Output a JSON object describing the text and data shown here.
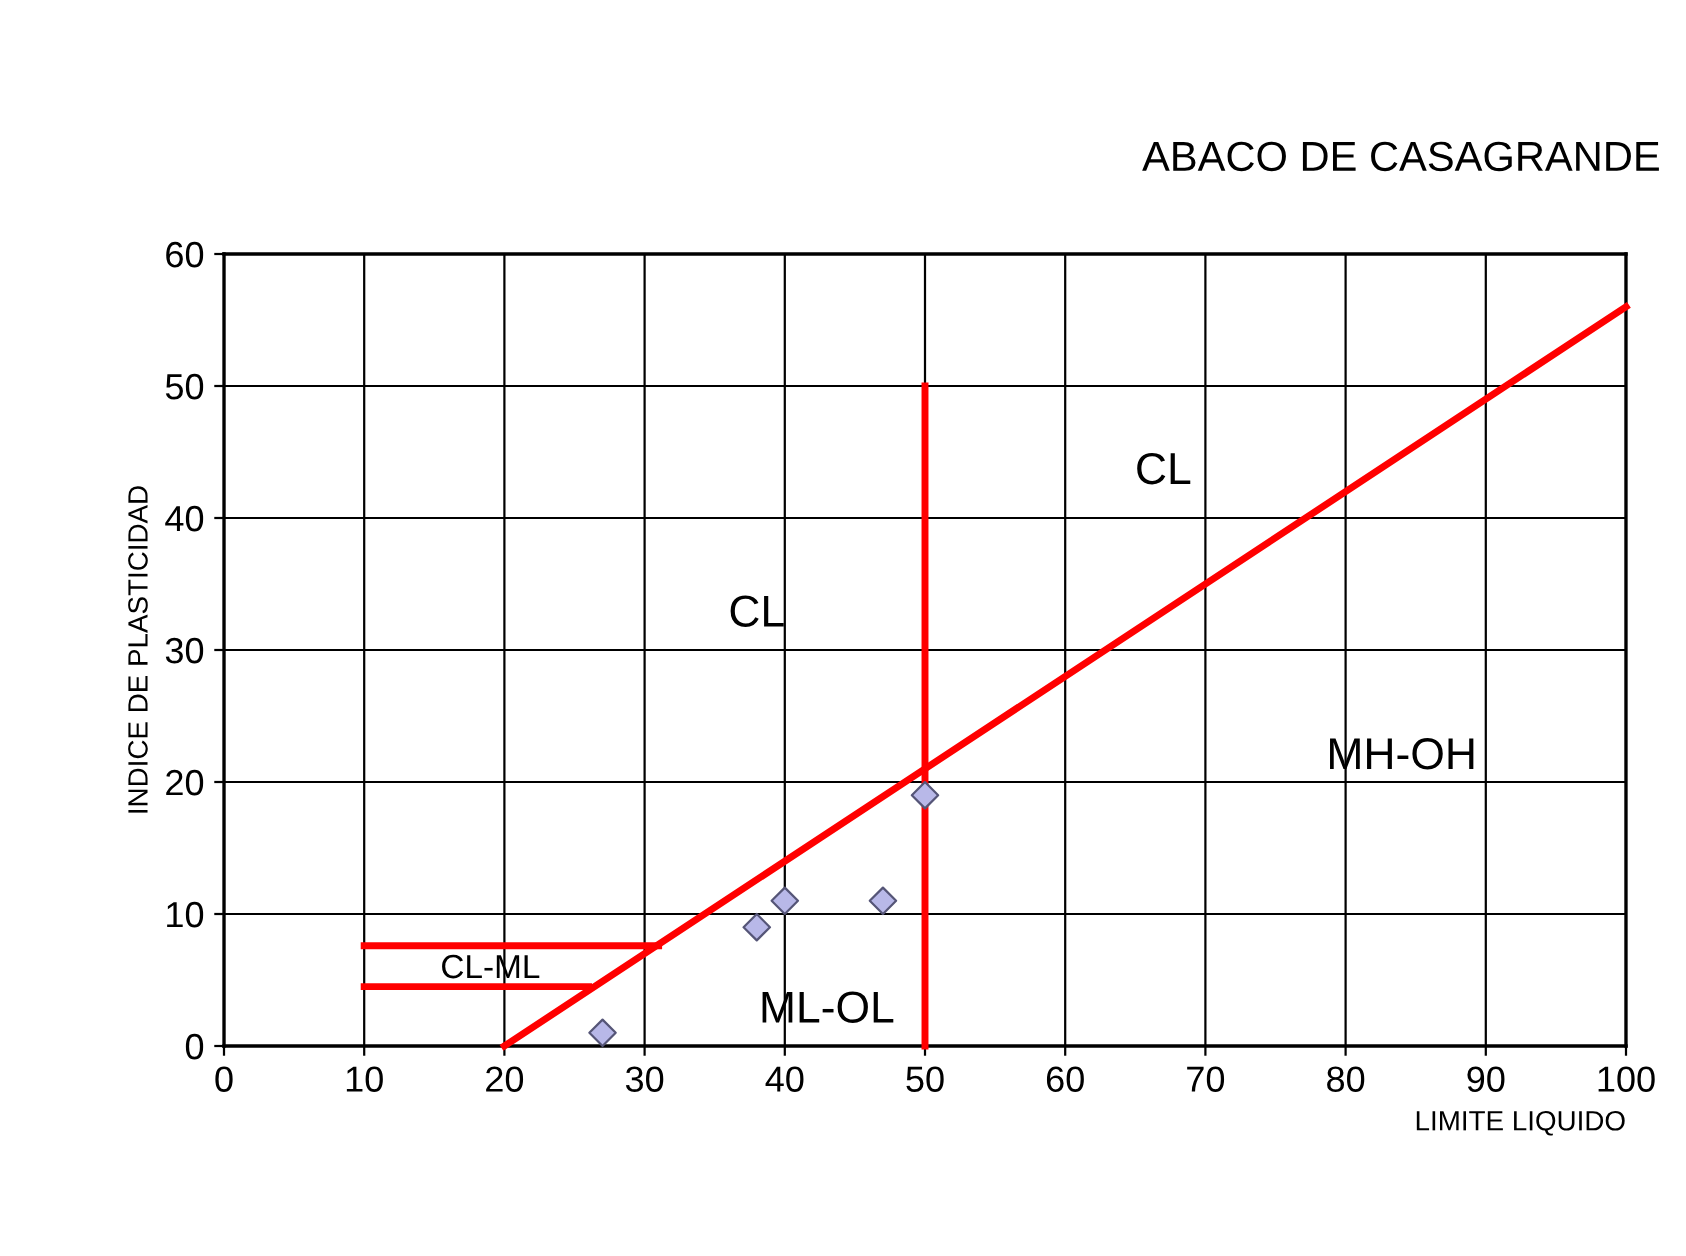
{
  "chart_data": {
    "type": "scatter",
    "title": "ABACO DE CASAGRANDE",
    "xlabel": "LIMITE LIQUIDO",
    "ylabel": "INDICE DE PLASTICIDAD",
    "xlim": [
      0,
      100
    ],
    "ylim": [
      0,
      60
    ],
    "xticks": [
      0,
      10,
      20,
      30,
      40,
      50,
      60,
      70,
      80,
      90,
      100
    ],
    "yticks": [
      0,
      10,
      20,
      30,
      40,
      50,
      60
    ],
    "grid": true,
    "series": [
      {
        "type": "line",
        "color": "#ff0000",
        "marker": "none",
        "line_style": "solid",
        "x": [
          20,
          100
        ],
        "values": [
          0,
          56
        ]
      },
      {
        "type": "line",
        "color": "#ff0000",
        "marker": "none",
        "line_style": "solid",
        "x": [
          50,
          50
        ],
        "values": [
          0,
          50
        ]
      },
      {
        "type": "line",
        "color": "#ff0000",
        "marker": "none",
        "line_style": "solid",
        "x": [
          10,
          31
        ],
        "values": [
          7.6,
          7.6
        ]
      },
      {
        "type": "line",
        "color": "#ff0000",
        "marker": "none",
        "line_style": "solid",
        "x": [
          10,
          26
        ],
        "values": [
          4.5,
          4.5
        ]
      },
      {
        "color": "#b8b8e8",
        "marker": "diamond",
        "x": [
          27,
          38,
          40,
          47,
          50
        ],
        "values": [
          1,
          9,
          11,
          11,
          19
        ]
      }
    ],
    "annotations": [
      "CL",
      "CL",
      "MH-OH",
      "ML-OL",
      "CL-ML"
    ]
  }
}
